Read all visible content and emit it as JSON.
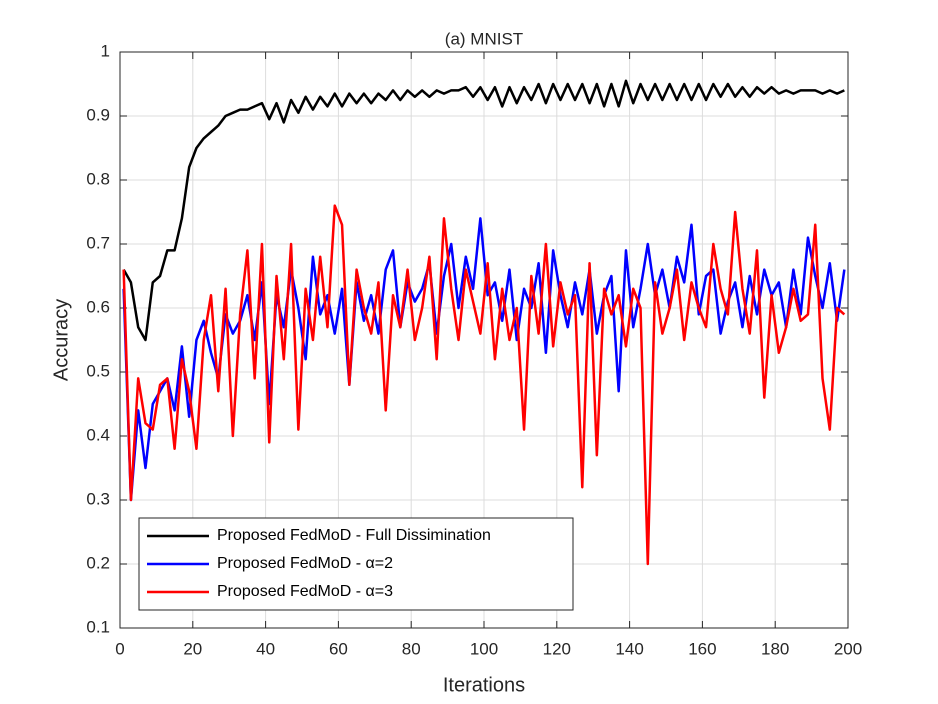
{
  "chart_data": {
    "type": "line",
    "title": "(a) MNIST",
    "x_label": "Iterations",
    "y_label": "Accuracy",
    "xlim": [
      0,
      200
    ],
    "ylim": [
      0.1,
      1
    ],
    "xticks": [
      0,
      20,
      40,
      60,
      80,
      100,
      120,
      140,
      160,
      180,
      200
    ],
    "yticks": [
      0.1,
      0.2,
      0.3,
      0.4,
      0.5,
      0.6,
      0.7,
      0.8,
      0.9,
      1
    ],
    "grid": true,
    "legend": "lower left",
    "x": [
      1,
      3,
      5,
      7,
      9,
      11,
      13,
      15,
      17,
      19,
      21,
      23,
      25,
      27,
      29,
      31,
      33,
      35,
      37,
      39,
      41,
      43,
      45,
      47,
      49,
      51,
      53,
      55,
      57,
      59,
      61,
      63,
      65,
      67,
      69,
      71,
      73,
      75,
      77,
      79,
      81,
      83,
      85,
      87,
      89,
      91,
      93,
      95,
      97,
      99,
      101,
      103,
      105,
      107,
      109,
      111,
      113,
      115,
      117,
      119,
      121,
      123,
      125,
      127,
      129,
      131,
      133,
      135,
      137,
      139,
      141,
      143,
      145,
      147,
      149,
      151,
      153,
      155,
      157,
      159,
      161,
      163,
      165,
      167,
      169,
      171,
      173,
      175,
      177,
      179,
      181,
      183,
      185,
      187,
      189,
      191,
      193,
      195,
      197,
      199
    ],
    "series": [
      {
        "name": "Proposed FedMoD - Full Dissimination",
        "color": "#000000",
        "values": [
          0.66,
          0.64,
          0.57,
          0.55,
          0.64,
          0.65,
          0.69,
          0.69,
          0.74,
          0.82,
          0.85,
          0.865,
          0.875,
          0.885,
          0.9,
          0.905,
          0.91,
          0.91,
          0.915,
          0.92,
          0.895,
          0.92,
          0.89,
          0.925,
          0.905,
          0.93,
          0.91,
          0.93,
          0.915,
          0.935,
          0.915,
          0.935,
          0.92,
          0.935,
          0.92,
          0.935,
          0.925,
          0.94,
          0.925,
          0.94,
          0.93,
          0.94,
          0.93,
          0.94,
          0.935,
          0.94,
          0.94,
          0.945,
          0.93,
          0.945,
          0.925,
          0.945,
          0.915,
          0.945,
          0.92,
          0.945,
          0.925,
          0.95,
          0.92,
          0.95,
          0.925,
          0.95,
          0.925,
          0.95,
          0.92,
          0.95,
          0.915,
          0.95,
          0.915,
          0.955,
          0.92,
          0.95,
          0.925,
          0.95,
          0.925,
          0.95,
          0.925,
          0.95,
          0.925,
          0.95,
          0.925,
          0.95,
          0.93,
          0.95,
          0.93,
          0.945,
          0.93,
          0.945,
          0.935,
          0.945,
          0.935,
          0.94,
          0.935,
          0.94,
          0.94,
          0.94,
          0.935,
          0.94,
          0.935,
          0.94
        ]
      },
      {
        "name": "Proposed FedMoD - α=2",
        "color": "#0000ff",
        "values": [
          0.63,
          0.3,
          0.44,
          0.35,
          0.45,
          0.47,
          0.49,
          0.44,
          0.54,
          0.43,
          0.55,
          0.58,
          0.53,
          0.49,
          0.59,
          0.56,
          0.58,
          0.62,
          0.55,
          0.64,
          0.45,
          0.62,
          0.57,
          0.66,
          0.6,
          0.52,
          0.68,
          0.59,
          0.62,
          0.56,
          0.63,
          0.48,
          0.64,
          0.58,
          0.62,
          0.56,
          0.66,
          0.69,
          0.57,
          0.64,
          0.61,
          0.63,
          0.67,
          0.56,
          0.65,
          0.7,
          0.6,
          0.68,
          0.63,
          0.74,
          0.62,
          0.64,
          0.58,
          0.66,
          0.55,
          0.63,
          0.6,
          0.67,
          0.53,
          0.69,
          0.62,
          0.57,
          0.64,
          0.59,
          0.66,
          0.56,
          0.62,
          0.65,
          0.47,
          0.69,
          0.57,
          0.63,
          0.7,
          0.62,
          0.66,
          0.6,
          0.68,
          0.64,
          0.73,
          0.59,
          0.65,
          0.66,
          0.56,
          0.61,
          0.64,
          0.57,
          0.65,
          0.59,
          0.66,
          0.62,
          0.64,
          0.57,
          0.66,
          0.59,
          0.71,
          0.65,
          0.6,
          0.67,
          0.58,
          0.66
        ]
      },
      {
        "name": "Proposed FedMoD - α=3",
        "color": "#ff0000",
        "values": [
          0.66,
          0.3,
          0.49,
          0.42,
          0.41,
          0.48,
          0.49,
          0.38,
          0.52,
          0.47,
          0.38,
          0.55,
          0.62,
          0.47,
          0.63,
          0.4,
          0.59,
          0.69,
          0.49,
          0.7,
          0.39,
          0.65,
          0.52,
          0.7,
          0.41,
          0.63,
          0.55,
          0.68,
          0.57,
          0.76,
          0.73,
          0.48,
          0.66,
          0.6,
          0.56,
          0.64,
          0.44,
          0.62,
          0.57,
          0.66,
          0.55,
          0.6,
          0.68,
          0.52,
          0.74,
          0.63,
          0.55,
          0.66,
          0.61,
          0.56,
          0.67,
          0.52,
          0.63,
          0.55,
          0.6,
          0.41,
          0.65,
          0.56,
          0.7,
          0.54,
          0.64,
          0.59,
          0.62,
          0.32,
          0.67,
          0.37,
          0.63,
          0.59,
          0.62,
          0.54,
          0.63,
          0.6,
          0.2,
          0.64,
          0.56,
          0.6,
          0.66,
          0.55,
          0.64,
          0.6,
          0.57,
          0.7,
          0.63,
          0.59,
          0.75,
          0.63,
          0.56,
          0.69,
          0.46,
          0.62,
          0.53,
          0.57,
          0.63,
          0.58,
          0.59,
          0.73,
          0.49,
          0.41,
          0.6,
          0.59
        ]
      }
    ]
  }
}
